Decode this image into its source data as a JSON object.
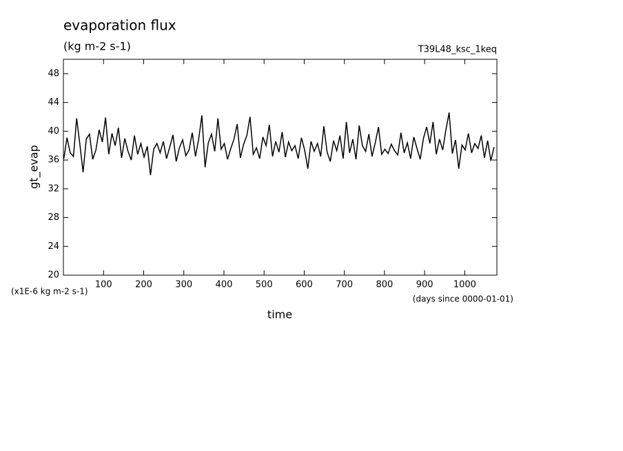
{
  "chart_data": {
    "type": "line",
    "title": "evaporation flux",
    "subtitle": "(kg m-2 s-1)",
    "annotation": "T39L48_ksc_1keq",
    "ylabel": "gt_evap",
    "xlabel": "time",
    "y_unit": "(x1E-6 kg m-2 s-1)",
    "x_unit": "(days since 0000-01-01)",
    "xlim": [
      0,
      1080
    ],
    "ylim": [
      20,
      50
    ],
    "xticks": [
      100,
      200,
      300,
      400,
      500,
      600,
      700,
      800,
      900,
      1000
    ],
    "yticks": [
      20,
      24,
      28,
      32,
      36,
      40,
      44,
      48
    ],
    "x": [
      1,
      9,
      17,
      25,
      33,
      41,
      49,
      57,
      65,
      73,
      81,
      89,
      97,
      105,
      113,
      121,
      129,
      137,
      145,
      153,
      161,
      169,
      177,
      185,
      193,
      201,
      209,
      217,
      225,
      233,
      241,
      249,
      257,
      265,
      273,
      281,
      289,
      297,
      305,
      313,
      321,
      329,
      337,
      345,
      353,
      361,
      369,
      377,
      385,
      393,
      401,
      409,
      417,
      425,
      433,
      441,
      449,
      457,
      465,
      473,
      481,
      489,
      497,
      505,
      513,
      521,
      529,
      537,
      545,
      553,
      561,
      569,
      577,
      585,
      593,
      601,
      609,
      617,
      625,
      633,
      641,
      649,
      657,
      665,
      673,
      681,
      689,
      697,
      705,
      713,
      721,
      729,
      737,
      745,
      753,
      761,
      769,
      777,
      785,
      793,
      801,
      809,
      817,
      825,
      833,
      841,
      849,
      857,
      865,
      873,
      881,
      889,
      897,
      905,
      913,
      921,
      929,
      937,
      945,
      953,
      961,
      969,
      977,
      985,
      993,
      1001,
      1009,
      1017,
      1025,
      1033,
      1041,
      1049,
      1057,
      1065,
      1073
    ],
    "series": [
      {
        "color": "#000000",
        "values": [
          36.2,
          39.1,
          37.0,
          36.5,
          41.8,
          38.2,
          34.3,
          38.9,
          39.6,
          36.1,
          37.4,
          40.2,
          38.5,
          41.9,
          36.8,
          39.7,
          38.0,
          40.5,
          36.3,
          39.0,
          37.2,
          36.0,
          39.4,
          36.8,
          38.3,
          36.4,
          37.9,
          33.9,
          37.5,
          38.3,
          37.0,
          38.6,
          36.2,
          37.8,
          39.5,
          35.8,
          37.7,
          38.8,
          36.6,
          37.4,
          39.8,
          36.5,
          38.9,
          42.2,
          35.0,
          38.4,
          39.6,
          37.2,
          41.8,
          37.5,
          38.3,
          36.1,
          37.6,
          38.9,
          41.0,
          36.3,
          38.2,
          39.4,
          42.0,
          36.8,
          37.7,
          36.2,
          39.2,
          38.0,
          40.9,
          36.5,
          38.6,
          37.1,
          39.9,
          36.4,
          38.5,
          37.3,
          38.0,
          36.2,
          39.1,
          37.4,
          34.8,
          38.6,
          37.2,
          38.3,
          36.5,
          40.7,
          37.1,
          35.8,
          38.7,
          37.3,
          39.4,
          36.2,
          41.3,
          37.0,
          38.9,
          36.1,
          40.8,
          38.0,
          37.2,
          39.6,
          36.5,
          38.4,
          40.6,
          36.8,
          37.5,
          36.9,
          38.2,
          37.3,
          36.7,
          39.8,
          37.0,
          38.4,
          36.2,
          39.2,
          37.6,
          36.1,
          39.0,
          40.6,
          38.3,
          41.3,
          36.8,
          38.9,
          37.4,
          40.2,
          42.6,
          36.9,
          38.8,
          34.8,
          38.1,
          37.4,
          39.7,
          37.0,
          38.3,
          37.6,
          39.4,
          36.3,
          38.7,
          35.9,
          37.8
        ]
      }
    ]
  }
}
